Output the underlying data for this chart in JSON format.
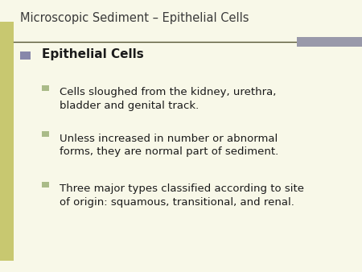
{
  "title": "Microscopic Sediment – Epithelial Cells",
  "background_color": "#f8f8e8",
  "left_bar_color": "#c8c870",
  "title_color": "#3a3a3a",
  "title_fontsize": 10.5,
  "separator_color": "#555533",
  "separator_right_color": "#9999aa",
  "l1_bullet_color": "#8888aa",
  "l2_bullet_color": "#aabb88",
  "l1_text": "Epithelial Cells",
  "l1_fontsize": 11,
  "l2_items": [
    "Cells sloughed from the kidney, urethra,\nbladder and genital track.",
    "Unless increased in number or abnormal\nforms, they are normal part of sediment.",
    "Three major types classified according to site\nof origin: squamous, transitional, and renal."
  ],
  "l2_fontsize": 9.5,
  "text_color": "#1a1a1a"
}
